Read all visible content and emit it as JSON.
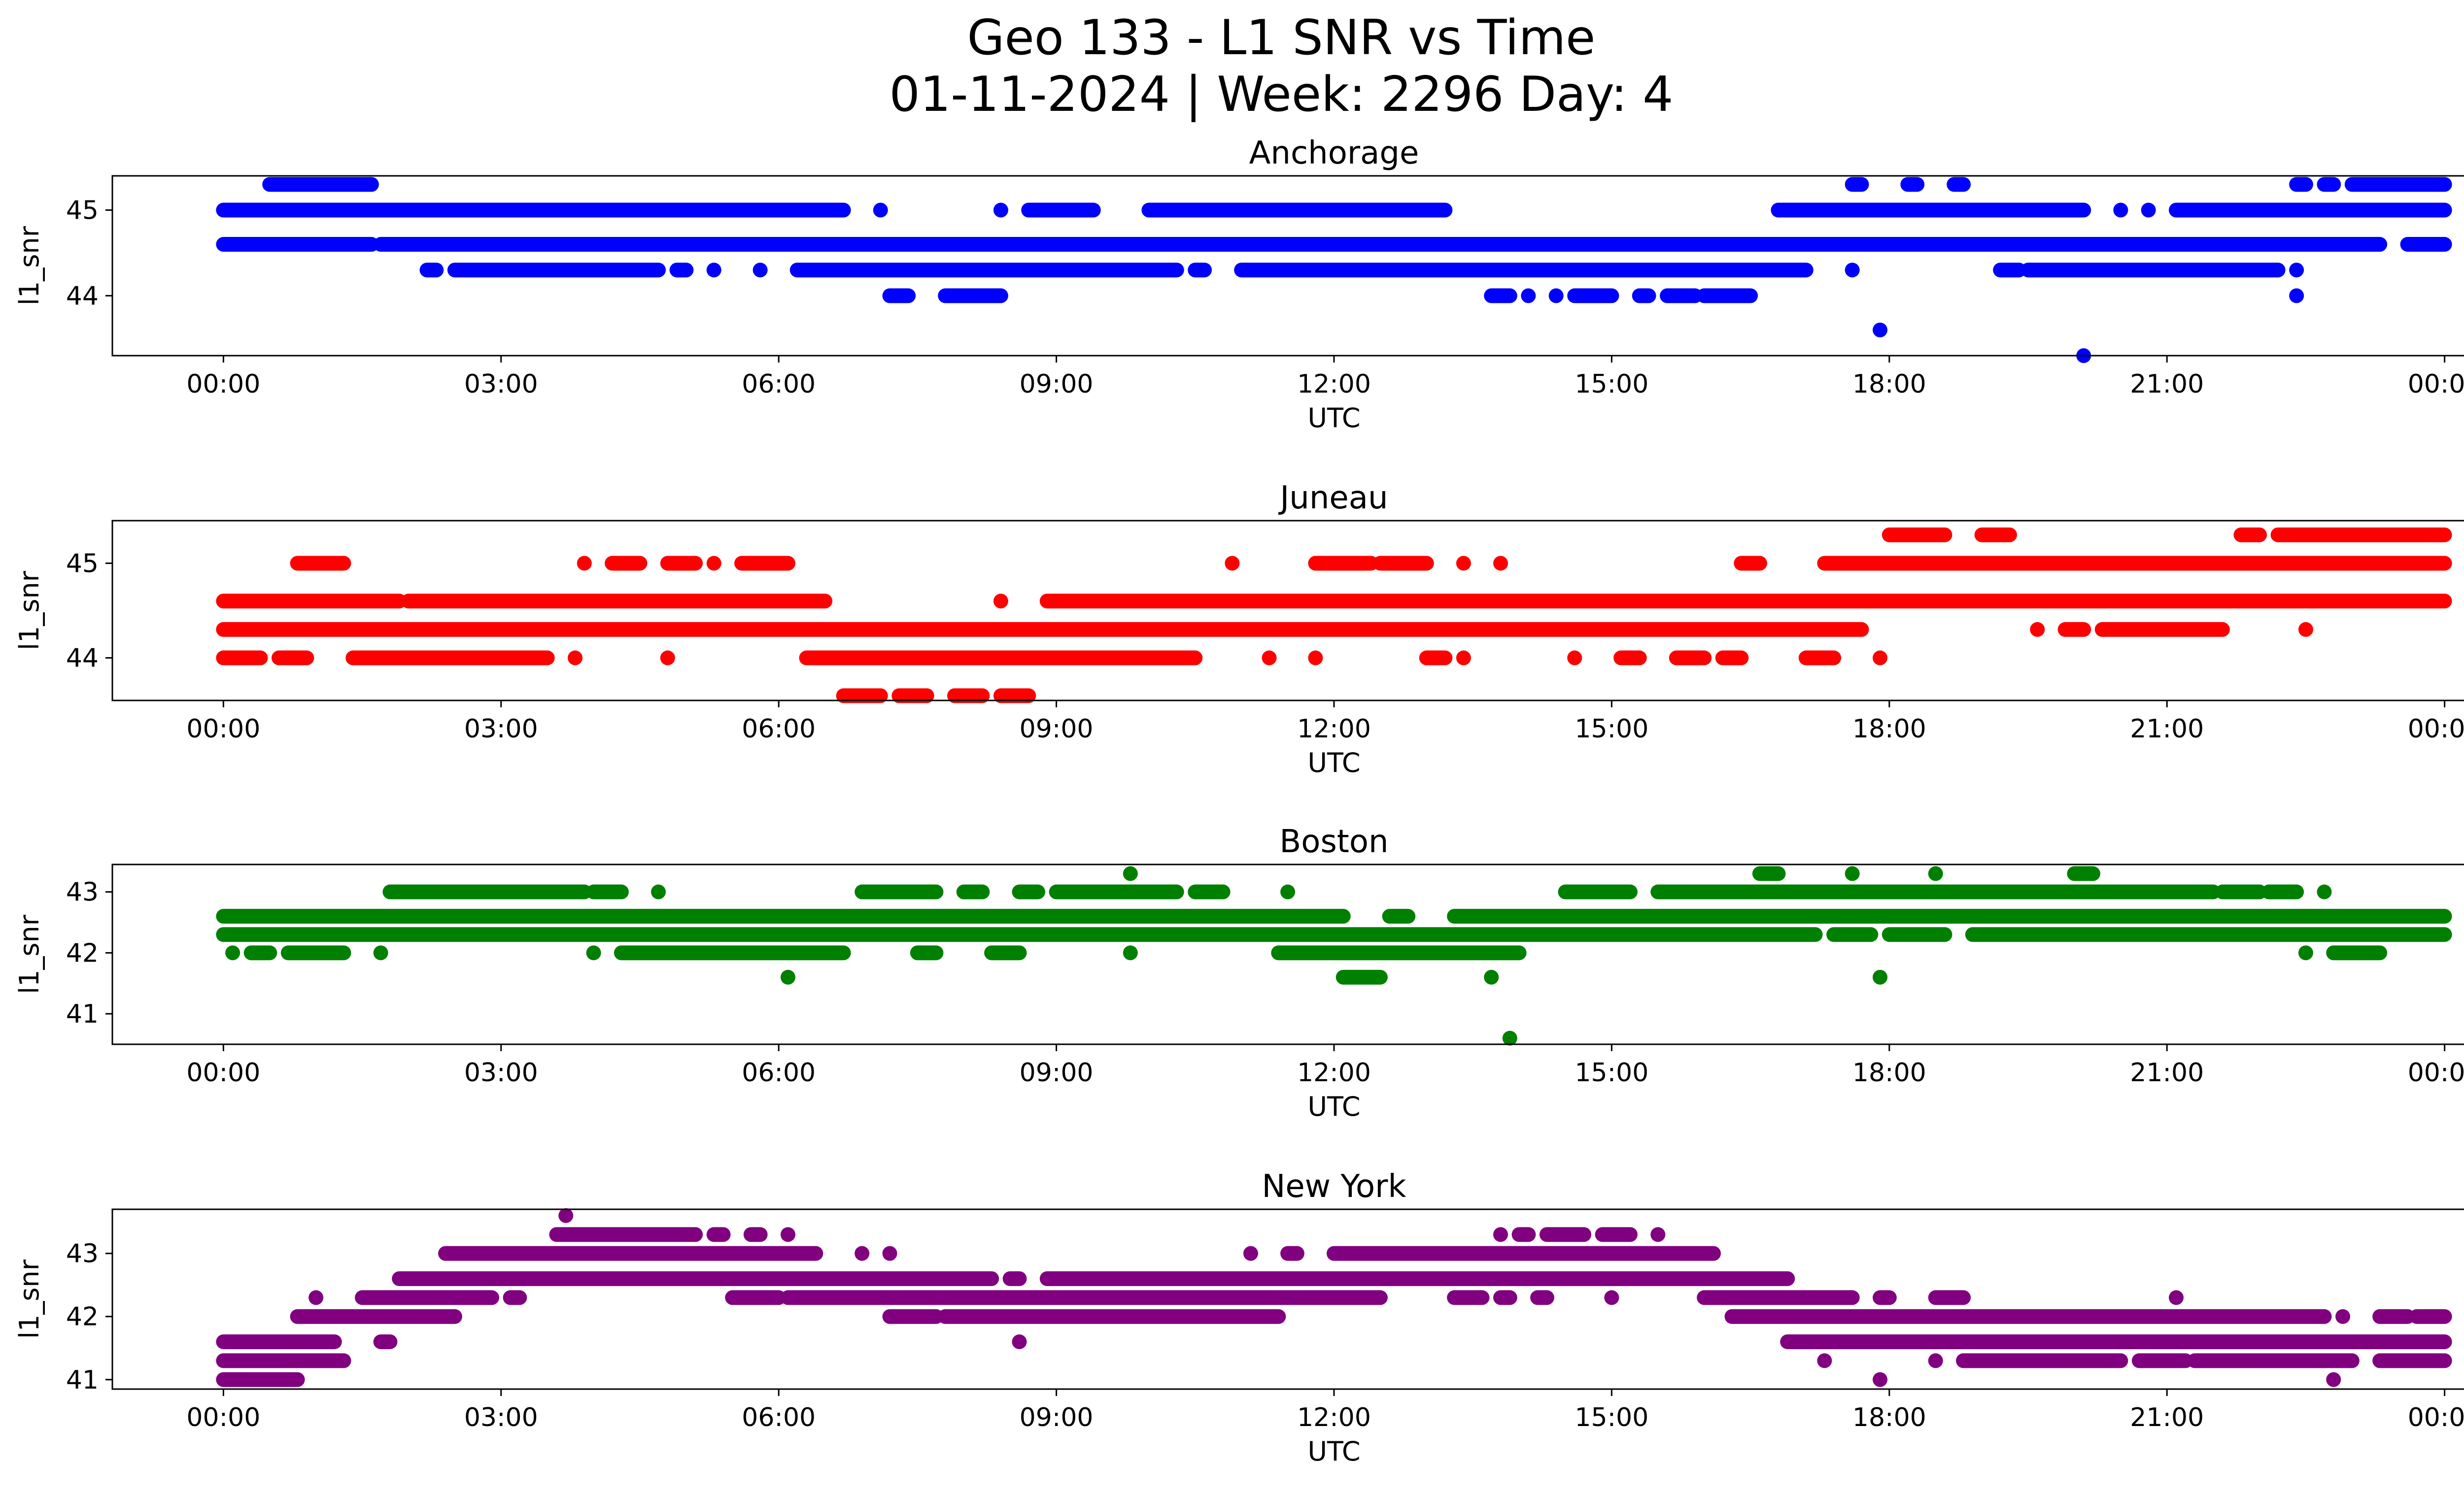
{
  "title": {
    "line1": "Geo 133 - L1 SNR vs Time",
    "line2": "01-11-2024 | Week: 2296 Day: 4"
  },
  "chart_data": [
    {
      "type": "scatter",
      "title": "Anchorage",
      "xlabel": "UTC",
      "ylabel": "l1_snr",
      "color": "#0000ff",
      "xticks": [
        "00:00",
        "03:00",
        "06:00",
        "09:00",
        "12:00",
        "15:00",
        "18:00",
        "21:00",
        "00:00"
      ],
      "yticks": [
        44,
        45
      ],
      "ylim": [
        43.3,
        45.4
      ],
      "xlim_hours": [
        -1.2,
        25.2
      ],
      "series": [
        {
          "y": 45.3,
          "ranges": [
            [
              0.5,
              1.6
            ],
            [
              17.6,
              17.7
            ],
            [
              18.2,
              18.3
            ],
            [
              18.7,
              18.8
            ],
            [
              22.4,
              22.5
            ],
            [
              22.7,
              22.8
            ],
            [
              23.0,
              24.0
            ]
          ]
        },
        {
          "y": 45.0,
          "ranges": [
            [
              0.0,
              6.7
            ],
            [
              7.1,
              7.1
            ],
            [
              8.4,
              8.4
            ],
            [
              8.7,
              9.4
            ],
            [
              10.0,
              13.2
            ],
            [
              16.8,
              20.1
            ],
            [
              20.5,
              20.5
            ],
            [
              20.8,
              20.8
            ],
            [
              21.1,
              24.0
            ]
          ]
        },
        {
          "y": 44.6,
          "ranges": [
            [
              0.0,
              1.6
            ],
            [
              1.7,
              23.3
            ],
            [
              23.6,
              24.0
            ]
          ]
        },
        {
          "y": 44.3,
          "ranges": [
            [
              2.2,
              2.3
            ],
            [
              2.5,
              4.7
            ],
            [
              4.9,
              5.0
            ],
            [
              5.3,
              5.3
            ],
            [
              5.8,
              5.8
            ],
            [
              6.2,
              10.3
            ],
            [
              10.5,
              10.6
            ],
            [
              11.0,
              17.1
            ],
            [
              17.6,
              17.6
            ],
            [
              19.2,
              19.4
            ],
            [
              19.5,
              22.2
            ],
            [
              22.4,
              22.4
            ]
          ]
        },
        {
          "y": 44.0,
          "ranges": [
            [
              7.2,
              7.4
            ],
            [
              7.8,
              8.4
            ],
            [
              13.7,
              13.9
            ],
            [
              14.1,
              14.1
            ],
            [
              14.4,
              14.4
            ],
            [
              14.6,
              15.0
            ],
            [
              15.3,
              15.4
            ],
            [
              15.6,
              15.9
            ],
            [
              16.0,
              16.5
            ],
            [
              22.4,
              22.4
            ]
          ]
        },
        {
          "y": 43.6,
          "ranges": [
            [
              17.9,
              17.9
            ]
          ]
        },
        {
          "y": 43.3,
          "ranges": [
            [
              20.1,
              20.1
            ]
          ]
        }
      ]
    },
    {
      "type": "scatter",
      "title": "Juneau",
      "xlabel": "UTC",
      "ylabel": "l1_snr",
      "color": "#ff0000",
      "xticks": [
        "00:00",
        "03:00",
        "06:00",
        "09:00",
        "12:00",
        "15:00",
        "18:00",
        "21:00",
        "00:00"
      ],
      "yticks": [
        44,
        45
      ],
      "ylim": [
        43.55,
        45.45
      ],
      "xlim_hours": [
        -1.2,
        25.2
      ],
      "series": [
        {
          "y": 45.3,
          "ranges": [
            [
              18.0,
              18.6
            ],
            [
              19.0,
              19.3
            ],
            [
              21.8,
              22.0
            ],
            [
              22.2,
              24.0
            ]
          ]
        },
        {
          "y": 45.0,
          "ranges": [
            [
              0.8,
              1.3
            ],
            [
              3.9,
              3.9
            ],
            [
              4.2,
              4.5
            ],
            [
              4.8,
              5.1
            ],
            [
              5.3,
              5.3
            ],
            [
              5.6,
              6.1
            ],
            [
              10.9,
              10.9
            ],
            [
              11.8,
              12.4
            ],
            [
              12.5,
              13.0
            ],
            [
              13.4,
              13.4
            ],
            [
              13.8,
              13.8
            ],
            [
              16.4,
              16.6
            ],
            [
              17.3,
              24.0
            ]
          ]
        },
        {
          "y": 44.6,
          "ranges": [
            [
              0.0,
              1.9
            ],
            [
              2.0,
              6.5
            ],
            [
              8.4,
              8.4
            ],
            [
              8.9,
              24.0
            ]
          ]
        },
        {
          "y": 44.3,
          "ranges": [
            [
              0.0,
              17.7
            ],
            [
              19.6,
              19.6
            ],
            [
              19.9,
              20.1
            ],
            [
              20.3,
              21.6
            ],
            [
              22.5,
              22.5
            ]
          ]
        },
        {
          "y": 44.0,
          "ranges": [
            [
              0.0,
              0.4
            ],
            [
              0.6,
              0.9
            ],
            [
              1.4,
              3.5
            ],
            [
              3.8,
              3.8
            ],
            [
              4.8,
              4.8
            ],
            [
              6.3,
              10.5
            ],
            [
              11.3,
              11.3
            ],
            [
              11.8,
              11.8
            ],
            [
              13.0,
              13.2
            ],
            [
              13.4,
              13.4
            ],
            [
              14.6,
              14.6
            ],
            [
              15.1,
              15.3
            ],
            [
              15.7,
              16.0
            ],
            [
              16.2,
              16.4
            ],
            [
              17.1,
              17.4
            ],
            [
              17.9,
              17.9
            ]
          ]
        },
        {
          "y": 43.6,
          "ranges": [
            [
              6.7,
              7.1
            ],
            [
              7.3,
              7.6
            ],
            [
              7.9,
              8.2
            ],
            [
              8.4,
              8.7
            ]
          ]
        }
      ]
    },
    {
      "type": "scatter",
      "title": "Boston",
      "xlabel": "UTC",
      "ylabel": "l1_snr",
      "color": "#008000",
      "xticks": [
        "00:00",
        "03:00",
        "06:00",
        "09:00",
        "12:00",
        "15:00",
        "18:00",
        "21:00",
        "00:00"
      ],
      "yticks": [
        41,
        42,
        43
      ],
      "ylim": [
        40.5,
        43.45
      ],
      "xlim_hours": [
        -1.2,
        25.2
      ],
      "series": [
        {
          "y": 43.3,
          "ranges": [
            [
              9.8,
              9.8
            ],
            [
              16.6,
              16.8
            ],
            [
              17.6,
              17.6
            ],
            [
              18.5,
              18.5
            ],
            [
              20.0,
              20.2
            ]
          ]
        },
        {
          "y": 43.0,
          "ranges": [
            [
              1.8,
              3.9
            ],
            [
              4.0,
              4.3
            ],
            [
              4.7,
              4.7
            ],
            [
              6.9,
              7.7
            ],
            [
              8.0,
              8.2
            ],
            [
              8.6,
              8.8
            ],
            [
              9.0,
              10.3
            ],
            [
              10.5,
              10.8
            ],
            [
              11.5,
              11.5
            ],
            [
              14.5,
              15.2
            ],
            [
              15.5,
              21.5
            ],
            [
              21.6,
              22.0
            ],
            [
              22.1,
              22.4
            ],
            [
              22.7,
              22.7
            ]
          ]
        },
        {
          "y": 42.6,
          "ranges": [
            [
              0.0,
              12.1
            ],
            [
              12.6,
              12.8
            ],
            [
              13.3,
              24.0
            ]
          ]
        },
        {
          "y": 42.3,
          "ranges": [
            [
              0.0,
              17.2
            ],
            [
              17.4,
              17.8
            ],
            [
              18.0,
              18.6
            ],
            [
              18.9,
              24.0
            ]
          ]
        },
        {
          "y": 42.0,
          "ranges": [
            [
              0.1,
              0.1
            ],
            [
              0.3,
              0.5
            ],
            [
              0.7,
              1.3
            ],
            [
              1.7,
              1.7
            ],
            [
              4.0,
              4.0
            ],
            [
              4.3,
              6.7
            ],
            [
              7.5,
              7.7
            ],
            [
              8.3,
              8.6
            ],
            [
              9.8,
              9.8
            ],
            [
              11.4,
              14.0
            ],
            [
              22.5,
              22.5
            ],
            [
              22.8,
              23.3
            ]
          ]
        },
        {
          "y": 41.6,
          "ranges": [
            [
              6.1,
              6.1
            ],
            [
              12.1,
              12.5
            ],
            [
              13.7,
              13.7
            ],
            [
              17.9,
              17.9
            ]
          ]
        },
        {
          "y": 40.6,
          "ranges": [
            [
              13.9,
              13.9
            ]
          ]
        }
      ]
    },
    {
      "type": "scatter",
      "title": "New York",
      "xlabel": "UTC",
      "ylabel": "l1_snr",
      "color": "#800080",
      "xticks": [
        "00:00",
        "03:00",
        "06:00",
        "09:00",
        "12:00",
        "15:00",
        "18:00",
        "21:00",
        "00:00"
      ],
      "yticks": [
        41,
        42,
        43
      ],
      "ylim": [
        40.85,
        43.7
      ],
      "xlim_hours": [
        -1.2,
        25.2
      ],
      "series": [
        {
          "y": 43.6,
          "ranges": [
            [
              3.7,
              3.7
            ]
          ]
        },
        {
          "y": 43.3,
          "ranges": [
            [
              3.6,
              5.1
            ],
            [
              5.3,
              5.4
            ],
            [
              5.7,
              5.8
            ],
            [
              6.1,
              6.1
            ],
            [
              14.0,
              14.1
            ],
            [
              14.3,
              14.7
            ],
            [
              14.9,
              15.2
            ],
            [
              15.5,
              15.5
            ],
            [
              13.8,
              13.8
            ]
          ]
        },
        {
          "y": 43.0,
          "ranges": [
            [
              2.4,
              6.4
            ],
            [
              6.9,
              6.9
            ],
            [
              7.2,
              7.2
            ],
            [
              11.1,
              11.1
            ],
            [
              11.5,
              11.6
            ],
            [
              12.0,
              16.1
            ]
          ]
        },
        {
          "y": 42.6,
          "ranges": [
            [
              1.9,
              8.3
            ],
            [
              8.5,
              8.6
            ],
            [
              8.9,
              16.9
            ]
          ]
        },
        {
          "y": 42.3,
          "ranges": [
            [
              1.0,
              1.0
            ],
            [
              1.5,
              2.9
            ],
            [
              3.1,
              3.2
            ],
            [
              5.5,
              6.0
            ],
            [
              6.1,
              12.5
            ],
            [
              13.3,
              13.6
            ],
            [
              13.8,
              13.9
            ],
            [
              14.2,
              14.3
            ],
            [
              15.0,
              15.0
            ],
            [
              16.0,
              17.6
            ],
            [
              17.9,
              18.0
            ],
            [
              18.5,
              18.8
            ],
            [
              21.1,
              21.1
            ]
          ]
        },
        {
          "y": 42.0,
          "ranges": [
            [
              0.8,
              2.5
            ],
            [
              7.2,
              7.7
            ],
            [
              7.8,
              11.4
            ],
            [
              16.3,
              22.7
            ],
            [
              22.9,
              22.9
            ],
            [
              23.3,
              23.6
            ],
            [
              23.7,
              24.0
            ]
          ]
        },
        {
          "y": 41.6,
          "ranges": [
            [
              0.0,
              1.2
            ],
            [
              1.7,
              1.8
            ],
            [
              8.6,
              8.6
            ],
            [
              16.9,
              24.0
            ]
          ]
        },
        {
          "y": 41.3,
          "ranges": [
            [
              0.0,
              1.3
            ],
            [
              17.3,
              17.3
            ],
            [
              18.5,
              18.5
            ],
            [
              18.8,
              20.5
            ],
            [
              20.7,
              21.2
            ],
            [
              21.3,
              23.0
            ],
            [
              23.3,
              24.0
            ]
          ]
        },
        {
          "y": 41.0,
          "ranges": [
            [
              0.0,
              0.8
            ],
            [
              17.9,
              17.9
            ],
            [
              22.8,
              22.8
            ]
          ]
        }
      ]
    }
  ]
}
